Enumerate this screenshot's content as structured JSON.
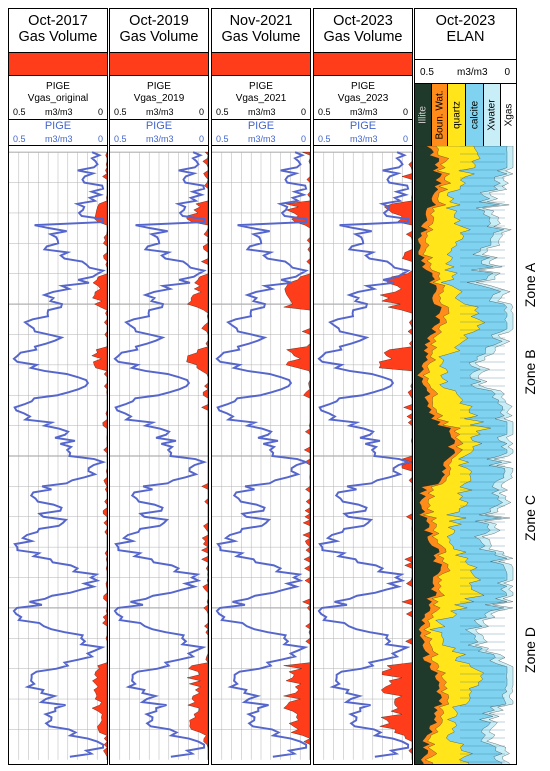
{
  "tracks": [
    {
      "title1": "Oct-2017",
      "title2": "Gas Volume",
      "curve1_name": "PIGE",
      "curve1_sub": "Vgas_original",
      "curve1_left": "0.5",
      "curve1_unit": "m3/m3",
      "curve1_right": "0",
      "curve2_name": "PIGE",
      "curve2_left": "0.5",
      "curve2_unit": "m3/m3",
      "curve2_right": "0"
    },
    {
      "title1": "Oct-2019",
      "title2": "Gas Volume",
      "curve1_name": "PIGE",
      "curve1_sub": "Vgas_2019",
      "curve1_left": "0.5",
      "curve1_unit": "m3/m3",
      "curve1_right": "0",
      "curve2_name": "PIGE",
      "curve2_left": "0.5",
      "curve2_unit": "m3/m3",
      "curve2_right": "0"
    },
    {
      "title1": "Nov-2021",
      "title2": "Gas Volume",
      "curve1_name": "PIGE",
      "curve1_sub": "Vgas_2021",
      "curve1_left": "0.5",
      "curve1_unit": "m3/m3",
      "curve1_right": "0",
      "curve2_name": "PIGE",
      "curve2_left": "0.5",
      "curve2_unit": "m3/m3",
      "curve2_right": "0"
    },
    {
      "title1": "Oct-2023",
      "title2": "Gas Volume",
      "curve1_name": "PIGE",
      "curve1_sub": "Vgas_2023",
      "curve1_left": "0.5",
      "curve1_unit": "m3/m3",
      "curve1_right": "0",
      "curve2_name": "PIGE",
      "curve2_left": "0.5",
      "curve2_unit": "m3/m3",
      "curve2_right": "0"
    }
  ],
  "elan": {
    "title1": "Oct-2023",
    "title2": "ELAN",
    "scale_left": "0.5",
    "scale_unit": "m3/m3",
    "scale_right": "0",
    "minerals": [
      "Illite",
      "Boun. Wat.",
      "quartz",
      "calcite",
      "Xwater",
      "Xgas"
    ]
  },
  "zones": [
    "Zone A",
    "Zone B",
    "Zone C",
    "Zone D"
  ],
  "colors": {
    "gas_fill": "#ff3d1a",
    "pige_curve": "#5566cc",
    "illite": "#1f3a2a",
    "bound_water": "#ff8c1a",
    "quartz": "#ffe51a",
    "calcite": "#7fd3f0",
    "xwater": "#c8eef7",
    "xgas": "#ffffff",
    "grid": "#b0b0b0"
  },
  "chart_data": {
    "type": "well-log",
    "depth_samples": 200,
    "pige_scale": [
      0.5,
      0
    ],
    "pige_profile": "porosity curve (0-0.5 m3/m3) repeated in each gas volume track",
    "gas_volume": {
      "Oct-2017": "sparse peaks, largest near Zone A",
      "Oct-2019": "moderate gas in Zones A-D",
      "Nov-2021": "increased gas in Zones A, B and D",
      "Oct-2023": "strongest gas in Zone A and lower Zone D"
    }
  }
}
